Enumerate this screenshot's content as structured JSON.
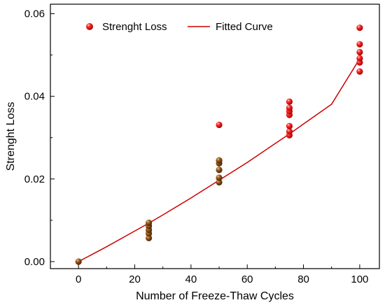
{
  "chart_data": {
    "type": "scatter",
    "xlabel": "Number of Freeze-Thaw Cycles",
    "ylabel": "Strenght Loss",
    "xlim": [
      -10,
      107
    ],
    "ylim": [
      -0.0017,
      0.0623
    ],
    "x_ticks": [
      0,
      20,
      40,
      60,
      80,
      100
    ],
    "y_ticks": [
      0.0,
      0.02,
      0.04,
      0.06
    ],
    "x_tick_labels": [
      "0",
      "20",
      "40",
      "60",
      "80",
      "100"
    ],
    "y_tick_labels": [
      "0.00",
      "0.02",
      "0.04",
      "0.06"
    ],
    "grid": false,
    "legend_position": "top-left",
    "series": [
      {
        "name": "Strenght Loss",
        "kind": "scatter",
        "color": "#ee1111",
        "points": [
          [
            0,
            0.0
          ],
          [
            25,
            0.0057
          ],
          [
            25,
            0.0068
          ],
          [
            25,
            0.0077
          ],
          [
            25,
            0.0086
          ],
          [
            25,
            0.0094
          ],
          [
            50,
            0.0192
          ],
          [
            50,
            0.0203
          ],
          [
            50,
            0.0222
          ],
          [
            50,
            0.0238
          ],
          [
            50,
            0.0245
          ],
          [
            50,
            0.0331
          ],
          [
            75,
            0.0306
          ],
          [
            75,
            0.0315
          ],
          [
            75,
            0.0328
          ],
          [
            75,
            0.0355
          ],
          [
            75,
            0.0364
          ],
          [
            75,
            0.0372
          ],
          [
            75,
            0.0387
          ],
          [
            100,
            0.046
          ],
          [
            100,
            0.0482
          ],
          [
            100,
            0.0492
          ],
          [
            100,
            0.0507
          ],
          [
            100,
            0.0526
          ],
          [
            100,
            0.0566
          ]
        ]
      },
      {
        "name": "Fitted Curve",
        "kind": "line",
        "color": "#cc0000",
        "x": [
          0,
          10,
          20,
          25,
          30,
          40,
          50,
          60,
          70,
          75,
          80,
          90,
          100
        ],
        "y": [
          0.0,
          0.0036,
          0.0074,
          0.0093,
          0.0113,
          0.0154,
          0.0197,
          0.024,
          0.0286,
          0.0309,
          0.0333,
          0.0381,
          0.0491
        ]
      }
    ],
    "overlap_color": "#8b4513"
  }
}
